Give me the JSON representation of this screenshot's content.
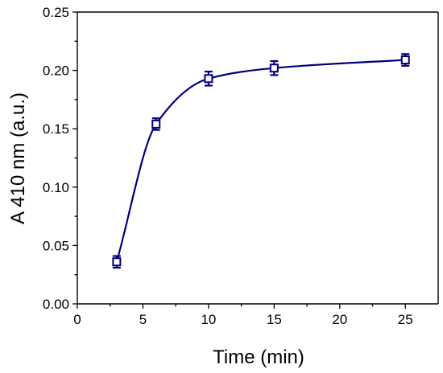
{
  "chart_data": {
    "type": "scatter",
    "title": "",
    "xlabel": "Time (min)",
    "ylabel": "A 410 nm (a.u.)",
    "xlim": [
      0,
      27.5
    ],
    "ylim": [
      0.0,
      0.25
    ],
    "x_major_ticks": [
      0,
      5,
      10,
      15,
      20,
      25
    ],
    "x_tick_labels": [
      "0",
      "5",
      "10",
      "15",
      "20",
      "25"
    ],
    "y_major_ticks": [
      0.0,
      0.05,
      0.1,
      0.15,
      0.2,
      0.25
    ],
    "y_tick_labels": [
      "0.00",
      "0.05",
      "0.10",
      "0.15",
      "0.20",
      "0.25"
    ],
    "grid": false,
    "legend": "none",
    "series": [
      {
        "color": "#000080",
        "marker": "open-square",
        "fit_curve": "smooth",
        "points": [
          {
            "x": 3,
            "y": 0.036,
            "err": 0.005
          },
          {
            "x": 6,
            "y": 0.154,
            "err": 0.005
          },
          {
            "x": 10,
            "y": 0.193,
            "err": 0.006
          },
          {
            "x": 15,
            "y": 0.202,
            "err": 0.006
          },
          {
            "x": 25,
            "y": 0.209,
            "err": 0.005
          }
        ]
      }
    ]
  }
}
